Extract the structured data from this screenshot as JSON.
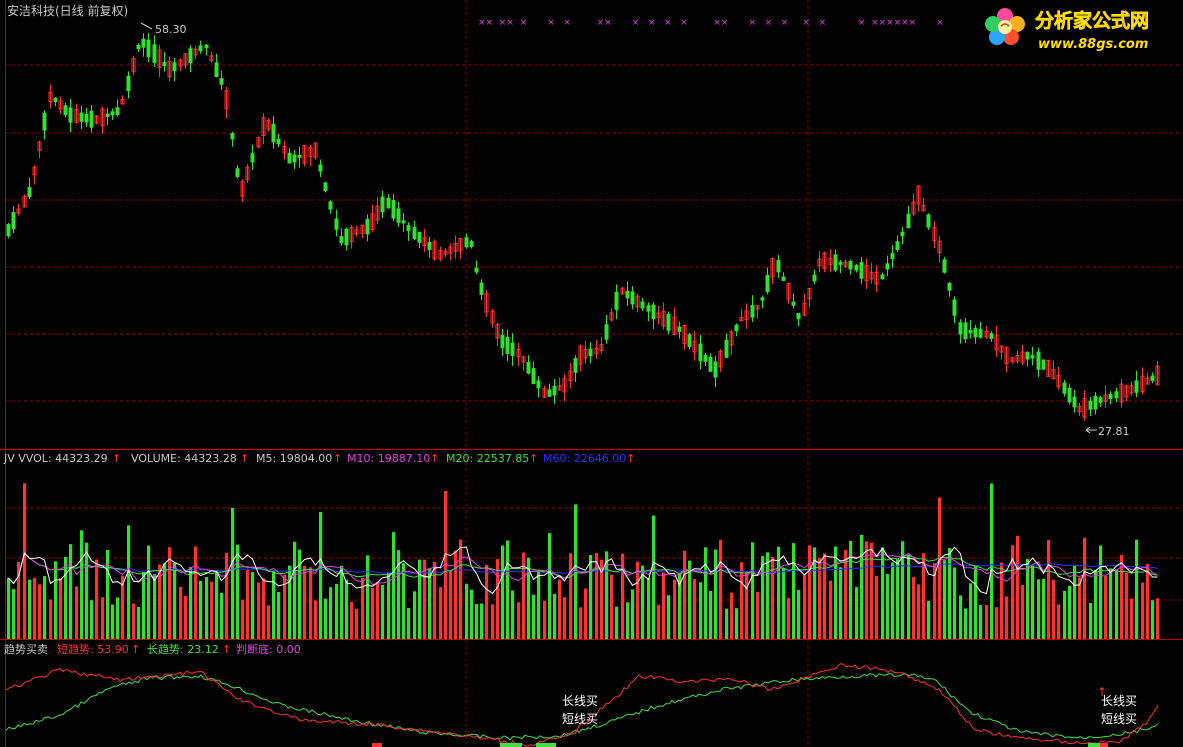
{
  "title": "安洁科技(日线 前复权)",
  "price_panel": {
    "max_label": "58.30",
    "min_label": "27.81",
    "x_markers": "××  ××  ×       ×   ×         ××       ×   ×   ×   ×         ××       ×   ×   ×     ×   ×           ×  ××××××       ×"
  },
  "volume_panel": {
    "name": "JV VVOL:",
    "name_val": "44323.29",
    "items": [
      {
        "label": "VOLUME:",
        "value": "44323.28",
        "color": "#c8c8c8"
      },
      {
        "label": "M5:",
        "value": "19804.00",
        "color": "#c8c8c8"
      },
      {
        "label": "M10:",
        "value": "19887.10",
        "color": "#e040e0"
      },
      {
        "label": "M20:",
        "value": "22537.85",
        "color": "#40e040"
      },
      {
        "label": "M60:",
        "value": "22646.00",
        "color": "#3030ff"
      }
    ]
  },
  "trend_panel": {
    "name": "趋势买卖",
    "items": [
      {
        "label": "短趋势:",
        "value": "53.90",
        "color": "#ff3030"
      },
      {
        "label": "长趋势:",
        "value": "23.12",
        "color": "#40e040"
      },
      {
        "label": "判断底:",
        "value": "0.00",
        "color": "#e040e0"
      }
    ],
    "signals": [
      {
        "long": "长线买",
        "short": "短线买"
      },
      {
        "long": "长线买",
        "short": "短线买"
      }
    ]
  },
  "logo": {
    "text": "分析家公式网",
    "url": "www.88gs.com"
  },
  "colors": {
    "up": "#ff3232",
    "down": "#32e032",
    "grid": "#8b0000",
    "border": "#c00000"
  },
  "icons": [
    "up-arrow-icon",
    "flower-logo-icon"
  ]
}
